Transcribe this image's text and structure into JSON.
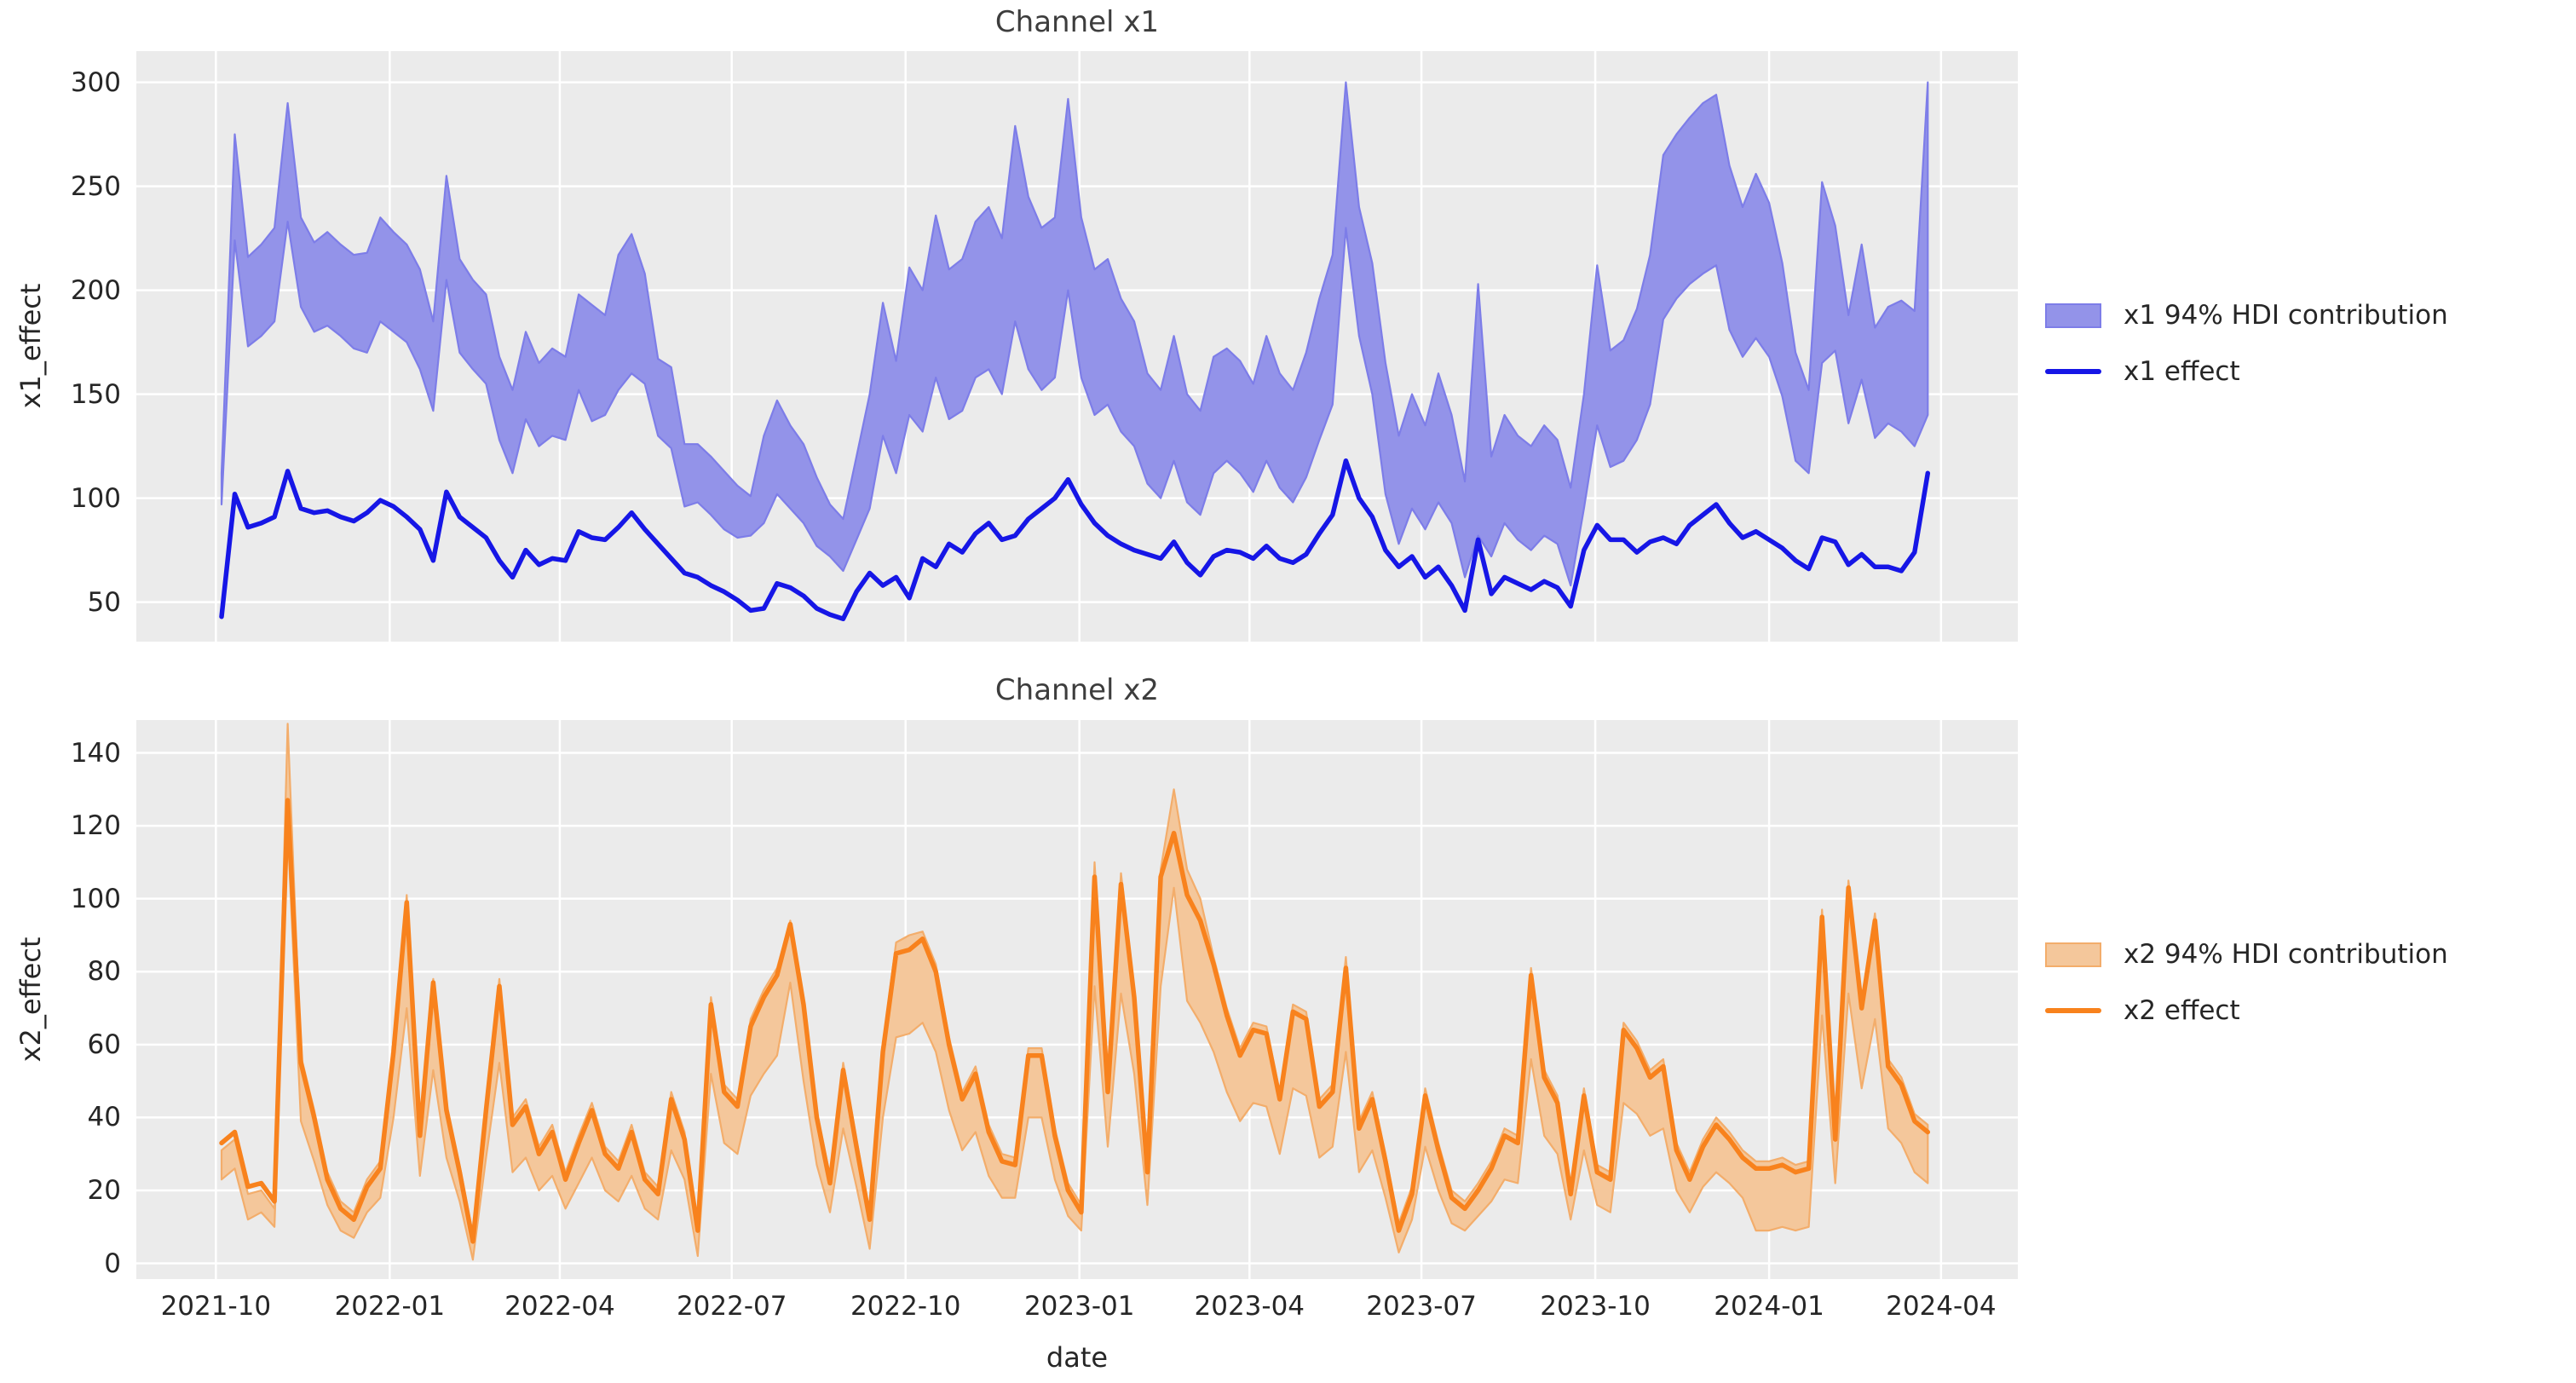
{
  "figure": {
    "background": "#ffffff",
    "axes_background": "#ebebeb",
    "grid_color": "#ffffff"
  },
  "x_axis": {
    "label": "date",
    "ticks": [
      {
        "label": "2021-10",
        "date": "2021-10-01"
      },
      {
        "label": "2022-01",
        "date": "2022-01-01"
      },
      {
        "label": "2022-04",
        "date": "2022-04-01"
      },
      {
        "label": "2022-07",
        "date": "2022-07-01"
      },
      {
        "label": "2022-10",
        "date": "2022-10-01"
      },
      {
        "label": "2023-01",
        "date": "2023-01-01"
      },
      {
        "label": "2023-04",
        "date": "2023-04-01"
      },
      {
        "label": "2023-07",
        "date": "2023-07-01"
      },
      {
        "label": "2023-10",
        "date": "2023-10-01"
      },
      {
        "label": "2024-01",
        "date": "2024-01-01"
      },
      {
        "label": "2024-04",
        "date": "2024-04-01"
      }
    ]
  },
  "dates": [
    "2021-10-04",
    "2021-10-11",
    "2021-10-18",
    "2021-10-25",
    "2021-11-01",
    "2021-11-08",
    "2021-11-15",
    "2021-11-22",
    "2021-11-29",
    "2021-12-06",
    "2021-12-13",
    "2021-12-20",
    "2021-12-27",
    "2022-01-03",
    "2022-01-10",
    "2022-01-17",
    "2022-01-24",
    "2022-01-31",
    "2022-02-07",
    "2022-02-14",
    "2022-02-21",
    "2022-02-28",
    "2022-03-07",
    "2022-03-14",
    "2022-03-21",
    "2022-03-28",
    "2022-04-04",
    "2022-04-11",
    "2022-04-18",
    "2022-04-25",
    "2022-05-02",
    "2022-05-09",
    "2022-05-16",
    "2022-05-23",
    "2022-05-30",
    "2022-06-06",
    "2022-06-13",
    "2022-06-20",
    "2022-06-27",
    "2022-07-04",
    "2022-07-11",
    "2022-07-18",
    "2022-07-25",
    "2022-08-01",
    "2022-08-08",
    "2022-08-15",
    "2022-08-22",
    "2022-08-29",
    "2022-09-05",
    "2022-09-12",
    "2022-09-19",
    "2022-09-26",
    "2022-10-03",
    "2022-10-10",
    "2022-10-17",
    "2022-10-24",
    "2022-10-31",
    "2022-11-07",
    "2022-11-14",
    "2022-11-21",
    "2022-11-28",
    "2022-12-05",
    "2022-12-12",
    "2022-12-19",
    "2022-12-26",
    "2023-01-02",
    "2023-01-09",
    "2023-01-16",
    "2023-01-23",
    "2023-01-30",
    "2023-02-06",
    "2023-02-13",
    "2023-02-20",
    "2023-02-27",
    "2023-03-06",
    "2023-03-13",
    "2023-03-20",
    "2023-03-27",
    "2023-04-03",
    "2023-04-10",
    "2023-04-17",
    "2023-04-24",
    "2023-05-01",
    "2023-05-08",
    "2023-05-15",
    "2023-05-22",
    "2023-05-29",
    "2023-06-05",
    "2023-06-12",
    "2023-06-19",
    "2023-06-26",
    "2023-07-03",
    "2023-07-10",
    "2023-07-17",
    "2023-07-24",
    "2023-07-31",
    "2023-08-07",
    "2023-08-14",
    "2023-08-21",
    "2023-08-28",
    "2023-09-04",
    "2023-09-11",
    "2023-09-18",
    "2023-09-25",
    "2023-10-02",
    "2023-10-09",
    "2023-10-16",
    "2023-10-23",
    "2023-10-30",
    "2023-11-06",
    "2023-11-13",
    "2023-11-20",
    "2023-11-27",
    "2023-12-04",
    "2023-12-11",
    "2023-12-18",
    "2023-12-25",
    "2024-01-01",
    "2024-01-08",
    "2024-01-15",
    "2024-01-22",
    "2024-01-29",
    "2024-02-05",
    "2024-02-12",
    "2024-02-19",
    "2024-02-26",
    "2024-03-04",
    "2024-03-11",
    "2024-03-18",
    "2024-03-25"
  ],
  "chart_data": [
    {
      "type": "line_with_hdi_band",
      "title": "Channel x1",
      "ylabel": "x1_effect",
      "ylim": [
        31,
        315
      ],
      "ytick_values": [
        300,
        250,
        200,
        150,
        100,
        50
      ],
      "ytick_labels": [
        "300",
        "250",
        "200",
        "150",
        "100",
        "50"
      ],
      "grid": true,
      "legend_position": "right",
      "legend": {
        "band_label": "x1 94% HDI contribution",
        "line_label": "x1 effect"
      },
      "colors": {
        "line": "#1616e6",
        "band_fill": "#9393e9",
        "band_edge": "#7d7de8"
      },
      "series": [
        {
          "name": "x1 effect",
          "values": [
            43,
            102,
            86,
            88,
            91,
            113,
            95,
            93,
            94,
            91,
            89,
            93,
            99,
            96,
            91,
            85,
            70,
            103,
            91,
            86,
            81,
            70,
            62,
            75,
            68,
            71,
            70,
            84,
            81,
            80,
            86,
            93,
            85,
            78,
            71,
            64,
            62,
            58,
            55,
            51,
            46,
            47,
            59,
            57,
            53,
            47,
            44,
            42,
            55,
            64,
            58,
            62,
            52,
            71,
            67,
            78,
            74,
            83,
            88,
            80,
            82,
            90,
            95,
            100,
            109,
            97,
            88,
            82,
            78,
            75,
            73,
            71,
            79,
            69,
            63,
            72,
            75,
            74,
            71,
            77,
            71,
            69,
            73,
            83,
            92,
            118,
            100,
            91,
            75,
            67,
            72,
            62,
            67,
            58,
            46,
            80,
            54,
            62,
            59,
            56,
            60,
            57,
            48,
            75,
            87,
            80,
            80,
            74,
            79,
            81,
            78,
            87,
            92,
            97,
            88,
            81,
            84,
            80,
            76,
            70,
            66,
            81,
            79,
            68,
            73,
            67,
            67,
            65,
            74,
            112
          ]
        },
        {
          "name": "x1 94% HDI upper",
          "values": [
            112,
            275,
            216,
            222,
            230,
            290,
            235,
            223,
            228,
            222,
            217,
            218,
            235,
            228,
            222,
            210,
            185,
            255,
            215,
            205,
            198,
            168,
            152,
            180,
            165,
            172,
            168,
            198,
            193,
            188,
            217,
            227,
            208,
            167,
            163,
            126,
            126,
            120,
            113,
            106,
            101,
            130,
            147,
            135,
            126,
            110,
            97,
            90,
            120,
            150,
            194,
            166,
            211,
            200,
            236,
            210,
            215,
            233,
            240,
            225,
            279,
            245,
            230,
            235,
            292,
            235,
            210,
            215,
            196,
            185,
            160,
            152,
            178,
            150,
            142,
            168,
            172,
            166,
            155,
            178,
            160,
            152,
            170,
            196,
            217,
            300,
            240,
            213,
            165,
            130,
            150,
            135,
            160,
            140,
            108,
            203,
            120,
            140,
            130,
            125,
            135,
            128,
            105,
            150,
            212,
            171,
            176,
            191,
            217,
            265,
            275,
            283,
            290,
            294,
            260,
            240,
            256,
            242,
            213,
            170,
            152,
            252,
            231,
            188,
            222,
            182,
            192,
            195,
            190,
            300
          ]
        },
        {
          "name": "x1 94% HDI lower",
          "values": [
            97,
            224,
            173,
            178,
            185,
            233,
            192,
            180,
            183,
            178,
            172,
            170,
            185,
            180,
            175,
            162,
            142,
            205,
            170,
            162,
            155,
            128,
            112,
            138,
            125,
            130,
            128,
            152,
            137,
            140,
            152,
            160,
            155,
            130,
            124,
            96,
            98,
            92,
            85,
            81,
            82,
            88,
            102,
            95,
            88,
            77,
            72,
            65,
            80,
            95,
            130,
            112,
            140,
            132,
            158,
            138,
            142,
            158,
            162,
            150,
            185,
            162,
            152,
            158,
            200,
            158,
            140,
            145,
            132,
            125,
            107,
            100,
            118,
            98,
            92,
            112,
            118,
            112,
            103,
            118,
            105,
            98,
            110,
            128,
            145,
            230,
            178,
            150,
            102,
            78,
            95,
            85,
            98,
            88,
            62,
            82,
            72,
            88,
            80,
            75,
            82,
            78,
            58,
            95,
            135,
            115,
            118,
            128,
            145,
            186,
            196,
            203,
            208,
            212,
            181,
            168,
            177,
            168,
            149,
            118,
            112,
            165,
            171,
            136,
            157,
            129,
            136,
            132,
            125,
            140
          ]
        }
      ]
    },
    {
      "type": "line_with_hdi_band",
      "title": "Channel x2",
      "ylabel": "x2_effect",
      "ylim": [
        -4.3,
        149
      ],
      "ytick_values": [
        140,
        120,
        100,
        80,
        60,
        40,
        20,
        0
      ],
      "ytick_labels": [
        "140",
        "120",
        "100",
        "80",
        "60",
        "40",
        "20",
        "0"
      ],
      "grid": true,
      "legend_position": "right",
      "legend": {
        "band_label": "x2 94% HDI contribution",
        "line_label": "x2 effect"
      },
      "colors": {
        "line": "#f8821d",
        "band_fill": "#f4c79b",
        "band_edge": "#f3ad6b"
      },
      "series": [
        {
          "name": "x2 effect",
          "values": [
            33,
            36,
            21,
            22,
            17,
            127,
            55,
            40,
            23,
            15,
            12,
            21,
            26,
            58,
            99,
            35,
            77,
            42,
            25,
            6,
            42,
            76,
            38,
            43,
            30,
            36,
            23,
            33,
            42,
            30,
            26,
            36,
            23,
            19,
            45,
            34,
            9,
            71,
            47,
            43,
            65,
            73,
            79,
            93,
            71,
            40,
            22,
            53,
            32,
            12,
            58,
            85,
            86,
            89,
            80,
            60,
            45,
            52,
            36,
            28,
            27,
            57,
            57,
            35,
            20,
            14,
            106,
            47,
            104,
            73,
            25,
            106,
            118,
            101,
            94,
            82,
            68,
            57,
            64,
            63,
            45,
            69,
            67,
            43,
            47,
            81,
            37,
            45,
            28,
            9,
            19,
            46,
            31,
            18,
            15,
            20,
            26,
            35,
            33,
            79,
            51,
            44,
            19,
            46,
            25,
            23,
            64,
            59,
            51,
            54,
            31,
            23,
            32,
            38,
            34,
            29,
            26,
            26,
            27,
            25,
            26,
            95,
            34,
            103,
            70,
            94,
            54,
            49,
            39,
            36
          ]
        },
        {
          "name": "x2 94% HDI upper",
          "values": [
            31,
            34,
            19,
            20,
            15,
            148,
            57,
            42,
            25,
            17,
            14,
            23,
            28,
            55,
            101,
            37,
            78,
            44,
            27,
            8,
            44,
            78,
            40,
            45,
            32,
            38,
            25,
            35,
            44,
            32,
            28,
            38,
            25,
            21,
            47,
            36,
            11,
            73,
            49,
            45,
            67,
            75,
            81,
            94,
            73,
            42,
            24,
            55,
            34,
            14,
            60,
            88,
            90,
            91,
            82,
            62,
            47,
            54,
            38,
            30,
            29,
            59,
            59,
            37,
            22,
            16,
            110,
            49,
            107,
            75,
            27,
            108,
            130,
            108,
            100,
            84,
            70,
            59,
            66,
            65,
            47,
            71,
            69,
            45,
            49,
            84,
            39,
            47,
            30,
            11,
            21,
            48,
            33,
            20,
            17,
            22,
            28,
            37,
            35,
            81,
            53,
            46,
            21,
            48,
            27,
            25,
            66,
            61,
            53,
            56,
            33,
            25,
            34,
            40,
            36,
            31,
            28,
            28,
            29,
            27,
            28,
            97,
            36,
            105,
            72,
            96,
            56,
            51,
            41,
            38
          ]
        },
        {
          "name": "x2 94% HDI lower",
          "values": [
            23,
            26,
            12,
            14,
            10,
            119,
            39,
            28,
            16,
            9,
            7,
            14,
            18,
            40,
            70,
            24,
            53,
            29,
            17,
            1,
            29,
            55,
            25,
            29,
            20,
            24,
            15,
            22,
            29,
            20,
            17,
            24,
            15,
            12,
            31,
            23,
            2,
            52,
            33,
            30,
            46,
            52,
            57,
            77,
            50,
            27,
            14,
            37,
            21,
            4,
            40,
            62,
            63,
            66,
            58,
            42,
            31,
            36,
            24,
            18,
            18,
            40,
            40,
            23,
            13,
            9,
            76,
            32,
            74,
            52,
            16,
            76,
            103,
            72,
            66,
            58,
            47,
            39,
            44,
            43,
            30,
            48,
            46,
            29,
            32,
            58,
            25,
            31,
            18,
            3,
            12,
            32,
            20,
            11,
            9,
            13,
            17,
            23,
            22,
            56,
            35,
            30,
            12,
            31,
            16,
            14,
            44,
            41,
            35,
            37,
            20,
            14,
            21,
            25,
            22,
            18,
            9,
            9,
            10,
            9,
            10,
            68,
            22,
            74,
            48,
            67,
            37,
            33,
            25,
            22
          ]
        }
      ]
    }
  ]
}
